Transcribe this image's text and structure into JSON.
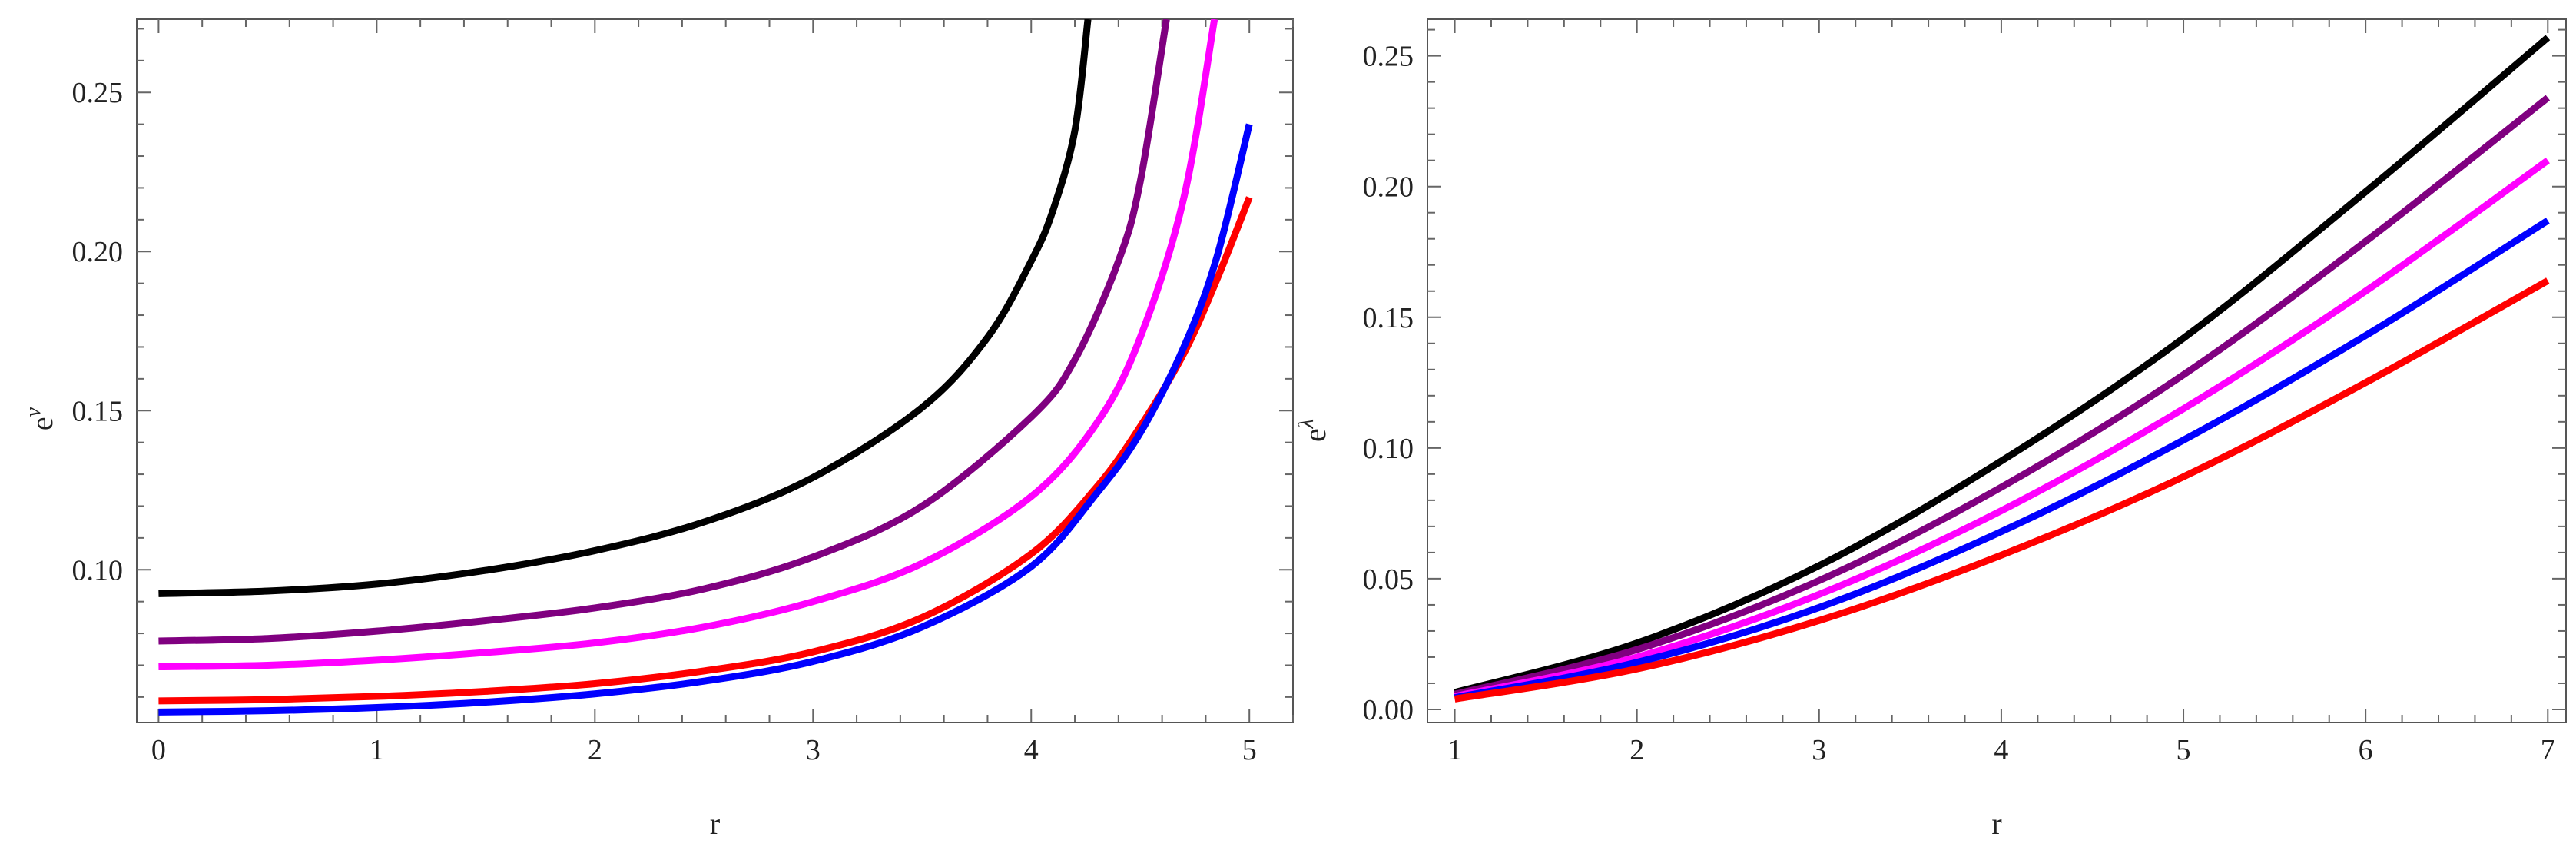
{
  "chart_data": [
    {
      "type": "line",
      "xlabel": "r",
      "ylabel": "e",
      "ylabel_sup": "ν",
      "xlim": [
        -0.1,
        5.2
      ],
      "ylim": [
        0.052,
        0.273
      ],
      "x_ticks": [
        "0",
        "1",
        "2",
        "3",
        "4",
        "5"
      ],
      "x_tick_values": [
        0,
        1,
        2,
        3,
        4,
        5
      ],
      "y_ticks": [
        "0.10",
        "0.15",
        "0.20",
        "0.25"
      ],
      "y_tick_values": [
        0.1,
        0.15,
        0.2,
        0.25
      ],
      "grid": false,
      "series": [
        {
          "color": "#000000",
          "x": [
            0,
            0.5,
            1,
            1.5,
            2,
            2.5,
            3,
            3.5,
            3.8,
            4,
            4.1,
            4.2,
            4.26
          ],
          "y": [
            0.0925,
            0.0933,
            0.0955,
            0.0998,
            0.106,
            0.115,
            0.129,
            0.151,
            0.173,
            0.197,
            0.213,
            0.238,
            0.273
          ]
        },
        {
          "color": "#800080",
          "x": [
            0,
            0.5,
            1,
            1.5,
            2,
            2.5,
            3,
            3.5,
            4,
            4.2,
            4.4,
            4.5,
            4.62
          ],
          "y": [
            0.0776,
            0.0784,
            0.0807,
            0.084,
            0.088,
            0.094,
            0.104,
            0.12,
            0.148,
            0.166,
            0.197,
            0.222,
            0.273
          ]
        },
        {
          "color": "#ff00ff",
          "x": [
            0,
            0.5,
            1,
            1.5,
            2,
            2.5,
            3,
            3.5,
            4,
            4.3,
            4.5,
            4.7,
            4.84
          ],
          "y": [
            0.0695,
            0.07,
            0.0716,
            0.074,
            0.077,
            0.082,
            0.09,
            0.102,
            0.123,
            0.146,
            0.173,
            0.217,
            0.273
          ]
        },
        {
          "color": "#ff0000",
          "x": [
            0,
            0.5,
            1,
            1.5,
            2,
            2.5,
            3,
            3.5,
            4,
            4.3,
            4.5,
            4.7,
            4.85,
            5.0
          ],
          "y": [
            0.0588,
            0.0592,
            0.0602,
            0.0618,
            0.0642,
            0.0682,
            0.0742,
            0.085,
            0.105,
            0.126,
            0.145,
            0.168,
            0.191,
            0.217
          ]
        },
        {
          "color": "#0000ff",
          "x": [
            0,
            0.5,
            1,
            1.5,
            2,
            2.5,
            3,
            3.5,
            4,
            4.3,
            4.5,
            4.7,
            4.85,
            5.0
          ],
          "y": [
            0.0553,
            0.0557,
            0.0567,
            0.0584,
            0.061,
            0.065,
            0.0712,
            0.082,
            0.101,
            0.124,
            0.143,
            0.17,
            0.198,
            0.24
          ]
        }
      ]
    },
    {
      "type": "line",
      "xlabel": "r",
      "ylabel": "e",
      "ylabel_sup": "λ",
      "xlim": [
        0.85,
        7.1
      ],
      "ylim": [
        -0.005,
        0.264
      ],
      "x_ticks": [
        "1",
        "2",
        "3",
        "4",
        "5",
        "6",
        "7"
      ],
      "x_tick_values": [
        1,
        2,
        3,
        4,
        5,
        6,
        7
      ],
      "y_ticks": [
        "0.00",
        "0.05",
        "0.10",
        "0.15",
        "0.20",
        "0.25"
      ],
      "y_tick_values": [
        0.0,
        0.05,
        0.1,
        0.15,
        0.2,
        0.25
      ],
      "grid": false,
      "series": [
        {
          "color": "#000000",
          "x": [
            1,
            2,
            3,
            4,
            5,
            6,
            7
          ],
          "y": [
            0.0065,
            0.0254,
            0.055,
            0.095,
            0.142,
            0.198,
            0.257
          ]
        },
        {
          "color": "#800080",
          "x": [
            1,
            2,
            3,
            4,
            5,
            6,
            7
          ],
          "y": [
            0.0058,
            0.0229,
            0.0493,
            0.085,
            0.128,
            0.179,
            0.234
          ]
        },
        {
          "color": "#ff00ff",
          "x": [
            1,
            2,
            3,
            4,
            5,
            6,
            7
          ],
          "y": [
            0.005,
            0.02,
            0.044,
            0.076,
            0.115,
            0.16,
            0.21
          ]
        },
        {
          "color": "#0000ff",
          "x": [
            1,
            2,
            3,
            4,
            5,
            6,
            7
          ],
          "y": [
            0.0045,
            0.018,
            0.039,
            0.068,
            0.103,
            0.143,
            0.187
          ]
        },
        {
          "color": "#ff0000",
          "x": [
            1,
            2,
            3,
            4,
            5,
            6,
            7
          ],
          "y": [
            0.004,
            0.0155,
            0.034,
            0.059,
            0.089,
            0.125,
            0.164
          ]
        }
      ]
    }
  ]
}
